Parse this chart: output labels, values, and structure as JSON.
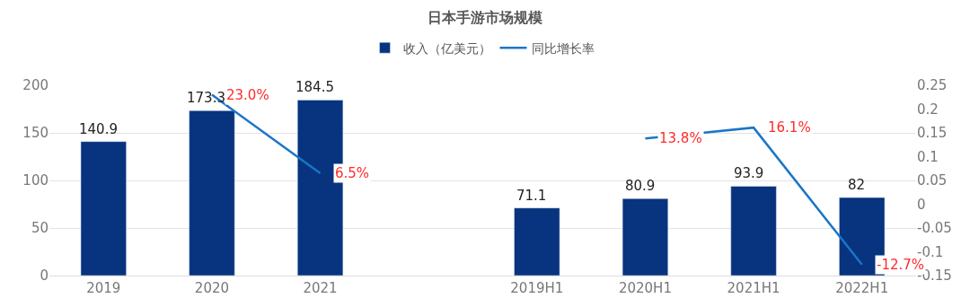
{
  "chart_data": {
    "type": "bar",
    "title": "日本手游市场规模",
    "categories": [
      "2019",
      "2020",
      "2021",
      null,
      "2019H1",
      "2020H1",
      "2021H1",
      "2022H1"
    ],
    "series": [
      {
        "name": "收入（亿美元）",
        "color": "#08337f",
        "values": [
          140.9,
          173.3,
          184.5,
          null,
          71.1,
          80.9,
          93.9,
          82
        ],
        "value_labels": [
          "140.9",
          "173.3",
          "184.5",
          null,
          "71.1",
          "80.9",
          "93.9",
          "82"
        ]
      },
      {
        "name": "同比增长率",
        "type": "line",
        "axis": "y2",
        "color": "#1a75c8",
        "values": [
          null,
          0.23,
          0.065,
          null,
          null,
          0.138,
          0.161,
          -0.127
        ],
        "value_labels": [
          null,
          "23.0%",
          "6.5%",
          null,
          null,
          "13.8%",
          "16.1%",
          "-12.7%"
        ]
      }
    ],
    "ylim": [
      0,
      200
    ],
    "yticks": [
      0,
      50,
      100,
      150,
      200
    ],
    "y2lim": [
      -0.15,
      0.25
    ],
    "y2ticks": [
      -0.15,
      -0.1,
      -0.05,
      0,
      0.05,
      0.1,
      0.15,
      0.2,
      0.25
    ],
    "grid": "y",
    "legend": "top"
  }
}
